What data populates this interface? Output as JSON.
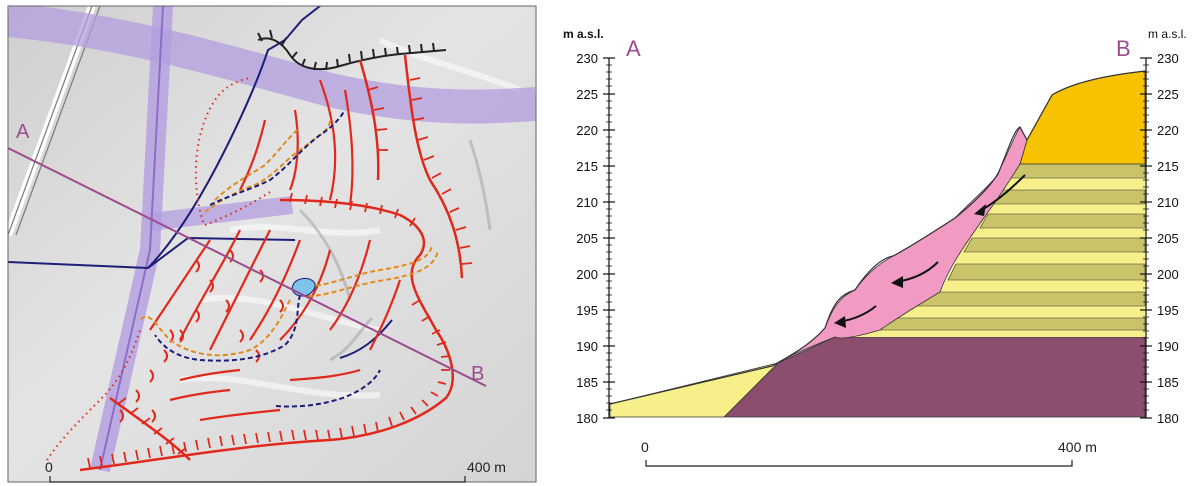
{
  "map_panel": {
    "point_a": "A",
    "point_b": "B",
    "scale_start": "0",
    "scale_end": "400 m"
  },
  "profile_panel": {
    "point_a": "A",
    "point_b": "B",
    "left_axis_unit": "m a.s.l.",
    "right_axis_unit": "m a.s.l.",
    "y_ticks": [
      "230",
      "225",
      "220",
      "215",
      "210",
      "205",
      "200",
      "195",
      "190",
      "185",
      "180"
    ],
    "scale_start": "0",
    "scale_end": "400 m"
  },
  "colors": {
    "profile_line": "#9c4b8c",
    "scarp": "#e0291c",
    "drainage": "#e08a1e",
    "stream": "#1d1d7a",
    "landslide_body": "#f09ac4",
    "bedrock": "#8c4e6e",
    "sand_layer": "#f7f08a",
    "clay_layer": "#c9c46a",
    "cap_layer": "#f7c200",
    "pond": "#7ec4ea",
    "road_band": "#b39ee0"
  }
}
